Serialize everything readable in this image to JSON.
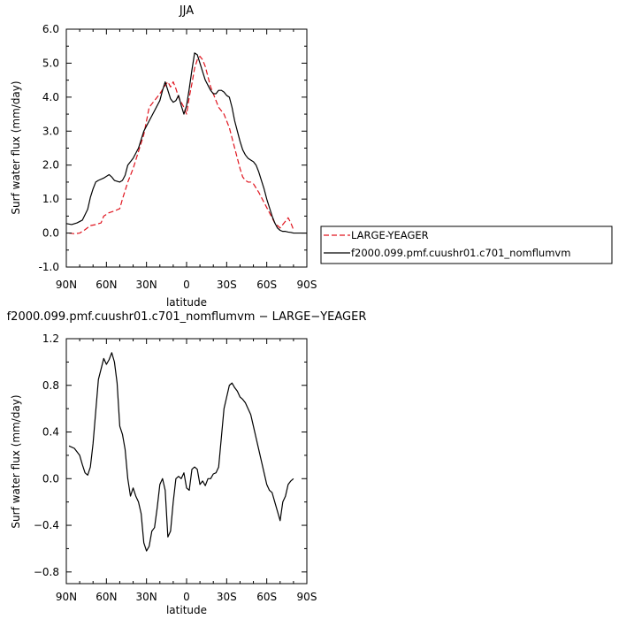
{
  "figure": {
    "background": "#ffffff"
  },
  "chart_data": [
    {
      "type": "line",
      "title": "JJA",
      "xlabel": "latitude",
      "ylabel": "Surf water flux (mm/day)",
      "xlim": [
        90,
        -90
      ],
      "ylim": [
        -1.0,
        6.0
      ],
      "x_ticks": [
        90,
        60,
        30,
        0,
        -30,
        -60,
        -90
      ],
      "x_tick_labels": [
        "90N",
        "60N",
        "30N",
        "0",
        "30S",
        "60S",
        "90S"
      ],
      "y_ticks": [
        -1.0,
        0.0,
        1.0,
        2.0,
        3.0,
        4.0,
        5.0,
        6.0
      ],
      "y_tick_labels": [
        "-1.0",
        "0.0",
        "1.0",
        "2.0",
        "3.0",
        "4.0",
        "5.0",
        "6.0"
      ],
      "grid": false,
      "legend_position": "right",
      "series": [
        {
          "name": "LARGE-YEAGER",
          "color": "#e0141e",
          "dashed": true,
          "x": [
            88,
            84,
            80,
            76,
            72,
            68,
            64,
            62,
            58,
            54,
            50,
            48,
            44,
            40,
            36,
            32,
            28,
            24,
            20,
            16,
            14,
            12,
            10,
            8,
            6,
            4,
            2,
            0,
            -2,
            -4,
            -6,
            -8,
            -10,
            -12,
            -14,
            -16,
            -18,
            -20,
            -22,
            -24,
            -26,
            -28,
            -30,
            -32,
            -34,
            -36,
            -38,
            -40,
            -42,
            -44,
            -46,
            -48,
            -50,
            -54,
            -58,
            -62,
            -66,
            -70,
            -74,
            -76,
            -78,
            -80
          ],
          "y": [
            0.0,
            -0.02,
            0.0,
            0.1,
            0.22,
            0.25,
            0.3,
            0.5,
            0.6,
            0.65,
            0.72,
            1.0,
            1.5,
            1.9,
            2.4,
            2.9,
            3.7,
            3.9,
            4.1,
            4.35,
            4.45,
            4.3,
            4.45,
            4.25,
            4.0,
            3.85,
            3.7,
            3.5,
            4.0,
            4.4,
            4.85,
            5.1,
            5.2,
            5.1,
            4.9,
            4.6,
            4.3,
            4.1,
            3.9,
            3.7,
            3.6,
            3.5,
            3.3,
            3.1,
            2.8,
            2.5,
            2.2,
            1.9,
            1.65,
            1.55,
            1.5,
            1.5,
            1.45,
            1.2,
            0.9,
            0.6,
            0.3,
            0.15,
            0.35,
            0.45,
            0.3,
            0.1
          ]
        },
        {
          "name": "f2000.099.pmf.cuushr01.c701_nomflumvm",
          "color": "#000000",
          "dashed": false,
          "x": [
            90,
            86,
            82,
            78,
            74,
            72,
            70,
            68,
            66,
            62,
            58,
            56,
            54,
            50,
            48,
            46,
            44,
            40,
            36,
            32,
            28,
            24,
            20,
            18,
            16,
            14,
            12,
            10,
            8,
            6,
            4,
            2,
            0,
            -2,
            -4,
            -6,
            -8,
            -10,
            -12,
            -14,
            -16,
            -18,
            -20,
            -22,
            -24,
            -26,
            -28,
            -30,
            -32,
            -34,
            -36,
            -38,
            -40,
            -42,
            -44,
            -46,
            -48,
            -50,
            -52,
            -54,
            -56,
            -58,
            -60,
            -62,
            -64,
            -66,
            -68,
            -70,
            -72,
            -74,
            -76,
            -78,
            -80,
            -82,
            -84,
            -86,
            -90
          ],
          "y": [
            0.28,
            0.25,
            0.3,
            0.38,
            0.7,
            1.05,
            1.3,
            1.5,
            1.55,
            1.62,
            1.72,
            1.65,
            1.55,
            1.5,
            1.55,
            1.7,
            2.0,
            2.2,
            2.5,
            3.0,
            3.3,
            3.6,
            3.9,
            4.2,
            4.45,
            4.2,
            3.95,
            3.85,
            3.9,
            4.05,
            3.75,
            3.5,
            3.75,
            4.25,
            4.8,
            5.3,
            5.25,
            5.0,
            4.75,
            4.5,
            4.35,
            4.2,
            4.1,
            4.1,
            4.2,
            4.2,
            4.15,
            4.05,
            4.0,
            3.7,
            3.3,
            3.0,
            2.7,
            2.45,
            2.3,
            2.2,
            2.15,
            2.1,
            2.0,
            1.8,
            1.55,
            1.3,
            1.0,
            0.75,
            0.5,
            0.3,
            0.15,
            0.08,
            0.05,
            0.05,
            0.03,
            0.02,
            0.0,
            0.0,
            0.0,
            0.0,
            0.0
          ]
        }
      ]
    },
    {
      "type": "line",
      "title": "f2000.099.pmf.cuushr01.c701_nomflumvm − LARGE−YEAGER",
      "xlabel": "latitude",
      "ylabel": "Surf water flux (mm/day)",
      "xlim": [
        90,
        -90
      ],
      "ylim": [
        -0.9,
        1.2
      ],
      "x_ticks": [
        90,
        60,
        30,
        0,
        -30,
        -60,
        -90
      ],
      "x_tick_labels": [
        "90N",
        "60N",
        "30N",
        "0",
        "30S",
        "60S",
        "90S"
      ],
      "y_ticks": [
        -0.8,
        -0.4,
        0.0,
        0.4,
        0.8,
        1.2
      ],
      "y_tick_labels": [
        "−0.8",
        "−0.4",
        "0.0",
        "0.4",
        "0.8",
        "1.2"
      ],
      "grid": false,
      "series": [
        {
          "name": "",
          "color": "#000000",
          "dashed": false,
          "x": [
            88,
            84,
            80,
            78,
            76,
            74,
            72,
            70,
            66,
            62,
            60,
            58,
            56,
            54,
            52,
            50,
            48,
            46,
            44,
            42,
            40,
            38,
            36,
            34,
            32,
            30,
            28,
            26,
            24,
            22,
            20,
            18,
            16,
            14,
            12,
            10,
            8,
            6,
            4,
            2,
            0,
            -2,
            -4,
            -6,
            -8,
            -10,
            -12,
            -14,
            -16,
            -18,
            -20,
            -22,
            -24,
            -26,
            -28,
            -30,
            -32,
            -34,
            -36,
            -38,
            -40,
            -42,
            -44,
            -46,
            -48,
            -50,
            -52,
            -54,
            -56,
            -58,
            -60,
            -62,
            -64,
            -66,
            -68,
            -70,
            -72,
            -74,
            -76,
            -78,
            -80
          ],
          "y": [
            0.28,
            0.26,
            0.2,
            0.12,
            0.05,
            0.03,
            0.1,
            0.3,
            0.85,
            1.03,
            0.98,
            1.02,
            1.08,
            1.0,
            0.82,
            0.45,
            0.38,
            0.25,
            0.0,
            -0.15,
            -0.08,
            -0.15,
            -0.2,
            -0.3,
            -0.55,
            -0.62,
            -0.58,
            -0.45,
            -0.42,
            -0.25,
            -0.05,
            0.0,
            -0.1,
            -0.5,
            -0.45,
            -0.2,
            0.0,
            0.02,
            0.0,
            0.05,
            -0.08,
            -0.1,
            0.08,
            0.1,
            0.08,
            -0.05,
            -0.02,
            -0.06,
            0.0,
            0.0,
            0.04,
            0.05,
            0.1,
            0.35,
            0.6,
            0.7,
            0.8,
            0.82,
            0.78,
            0.75,
            0.7,
            0.68,
            0.65,
            0.6,
            0.55,
            0.45,
            0.35,
            0.25,
            0.15,
            0.05,
            -0.05,
            -0.1,
            -0.12,
            -0.2,
            -0.28,
            -0.36,
            -0.2,
            -0.15,
            -0.05,
            -0.02,
            0.0
          ]
        }
      ]
    }
  ]
}
